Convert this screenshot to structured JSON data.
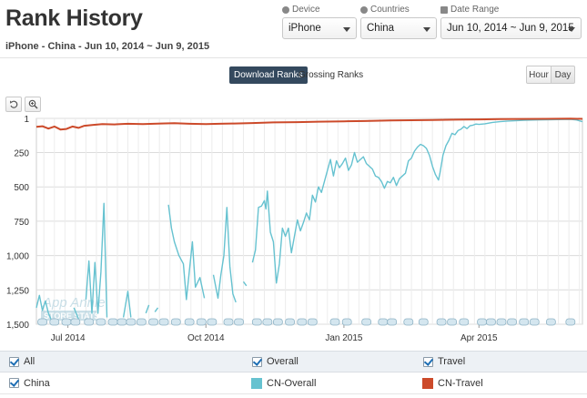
{
  "header": {
    "title": "Rank History",
    "subtitle": "iPhone - China - Jun 10, 2014 ~ Jun 9, 2015"
  },
  "filters": {
    "device": {
      "label": "Device",
      "value": "iPhone"
    },
    "countries": {
      "label": "Countries",
      "value": "China"
    },
    "date_range": {
      "label": "Date Range",
      "value": "Jun 10, 2014 ~ Jun 9, 2015"
    }
  },
  "rank_tabs": {
    "active": "Download Ranks",
    "inactive": "Grossing Ranks"
  },
  "granularity": {
    "hour": "Hour",
    "day": "Day"
  },
  "watermark": {
    "line1": "App Annie",
    "line2": "STORE STATS"
  },
  "legend": {
    "all": "All",
    "overall": "Overall",
    "travel": "Travel",
    "country": "China",
    "series_overall": "CN-Overall",
    "series_travel": "CN-Travel"
  },
  "colors": {
    "overall": "#66c2d0",
    "travel": "#cc4a2a",
    "grid": "#dcdcdc",
    "accent": "#34495e"
  },
  "icons": {
    "reset": "undo-icon",
    "zoom": "zoom-icon"
  },
  "chart_data": {
    "type": "line",
    "ylabel": "",
    "y_reversed": true,
    "ylim": [
      1,
      1500
    ],
    "yticks": [
      1,
      250,
      500,
      750,
      1000,
      1250,
      1500
    ],
    "ytick_labels": [
      "1",
      "250",
      "500",
      "750",
      "1,000",
      "1,250",
      "1,500"
    ],
    "xlim": [
      "2014-06-10",
      "2015-06-09"
    ],
    "xticks": [
      "2014-07-01",
      "2014-10-01",
      "2015-01-01",
      "2015-04-01"
    ],
    "xtick_labels": [
      "Jul 2014",
      "Oct 2014",
      "Jan 2015",
      "Apr 2015"
    ],
    "series": [
      {
        "name": "CN-Overall",
        "color": "#66c2d0",
        "segments": [
          [
            [
              "2014-06-10",
              1380
            ],
            [
              "2014-06-12",
              1290
            ],
            [
              "2014-06-14",
              1400
            ],
            [
              "2014-06-16",
              1330
            ],
            [
              "2014-06-18",
              1420
            ],
            [
              "2014-06-20",
              1470
            ]
          ],
          [
            [
              "2014-07-05",
              1380
            ],
            [
              "2014-07-08",
              1460
            ]
          ],
          [
            [
              "2014-07-13",
              1320
            ],
            [
              "2014-07-15",
              1040
            ],
            [
              "2014-07-17",
              1420
            ],
            [
              "2014-07-19",
              1050
            ],
            [
              "2014-07-21",
              1420
            ],
            [
              "2014-07-23",
              1120
            ],
            [
              "2014-07-25",
              620
            ],
            [
              "2014-07-27",
              1450
            ]
          ],
          [
            [
              "2014-08-07",
              1450
            ],
            [
              "2014-08-10",
              1260
            ],
            [
              "2014-08-12",
              1450
            ]
          ],
          [
            [
              "2014-08-22",
              1420
            ],
            [
              "2014-08-24",
              1360
            ]
          ],
          [
            [
              "2014-08-28",
              1410
            ],
            [
              "2014-08-30",
              1380
            ]
          ],
          [
            [
              "2014-09-06",
              630
            ],
            [
              "2014-09-08",
              800
            ],
            [
              "2014-09-10",
              900
            ],
            [
              "2014-09-13",
              1000
            ],
            [
              "2014-09-16",
              1060
            ],
            [
              "2014-09-18",
              1320
            ],
            [
              "2014-09-22",
              900
            ],
            [
              "2014-09-24",
              1230
            ],
            [
              "2014-09-27",
              1160
            ],
            [
              "2014-09-30",
              1310
            ]
          ],
          [
            [
              "2014-10-06",
              1140
            ],
            [
              "2014-10-09",
              1310
            ],
            [
              "2014-10-11",
              1140
            ],
            [
              "2014-10-13",
              1000
            ],
            [
              "2014-10-15",
              650
            ],
            [
              "2014-10-17",
              1080
            ],
            [
              "2014-10-19",
              1280
            ],
            [
              "2014-10-21",
              1340
            ]
          ],
          [
            [
              "2014-10-26",
              1190
            ],
            [
              "2014-10-28",
              1220
            ]
          ],
          [
            [
              "2014-11-01",
              1050
            ],
            [
              "2014-11-03",
              960
            ],
            [
              "2014-11-05",
              650
            ],
            [
              "2014-11-07",
              640
            ],
            [
              "2014-11-09",
              600
            ],
            [
              "2014-11-10",
              660
            ],
            [
              "2014-11-11",
              530
            ],
            [
              "2014-11-13",
              830
            ],
            [
              "2014-11-15",
              900
            ],
            [
              "2014-11-17",
              1200
            ],
            [
              "2014-11-19",
              1060
            ],
            [
              "2014-11-21",
              800
            ],
            [
              "2014-11-23",
              860
            ],
            [
              "2014-11-25",
              800
            ],
            [
              "2014-11-27",
              980
            ],
            [
              "2014-11-29",
              860
            ],
            [
              "2014-12-01",
              740
            ],
            [
              "2014-12-03",
              820
            ],
            [
              "2014-12-05",
              760
            ],
            [
              "2014-12-07",
              690
            ],
            [
              "2014-12-09",
              740
            ],
            [
              "2014-12-11",
              560
            ],
            [
              "2014-12-13",
              610
            ],
            [
              "2014-12-15",
              500
            ],
            [
              "2014-12-17",
              540
            ],
            [
              "2014-12-19",
              460
            ],
            [
              "2014-12-21",
              380
            ],
            [
              "2014-12-23",
              300
            ],
            [
              "2014-12-25",
              420
            ],
            [
              "2014-12-27",
              310
            ],
            [
              "2014-12-29",
              360
            ],
            [
              "2014-12-31",
              330
            ],
            [
              "2015-01-02",
              290
            ],
            [
              "2015-01-04",
              380
            ],
            [
              "2015-01-06",
              340
            ],
            [
              "2015-01-08",
              250
            ],
            [
              "2015-01-10",
              320
            ],
            [
              "2015-01-12",
              300
            ],
            [
              "2015-01-14",
              280
            ],
            [
              "2015-01-16",
              330
            ],
            [
              "2015-01-18",
              350
            ],
            [
              "2015-01-20",
              370
            ],
            [
              "2015-01-22",
              420
            ],
            [
              "2015-01-24",
              430
            ],
            [
              "2015-01-26",
              460
            ],
            [
              "2015-01-28",
              510
            ],
            [
              "2015-01-30",
              460
            ],
            [
              "2015-02-01",
              470
            ],
            [
              "2015-02-03",
              430
            ],
            [
              "2015-02-05",
              490
            ],
            [
              "2015-02-07",
              440
            ],
            [
              "2015-02-09",
              420
            ],
            [
              "2015-02-11",
              400
            ],
            [
              "2015-02-13",
              310
            ],
            [
              "2015-02-15",
              290
            ],
            [
              "2015-02-17",
              240
            ],
            [
              "2015-02-19",
              210
            ],
            [
              "2015-02-21",
              190
            ],
            [
              "2015-02-23",
              200
            ],
            [
              "2015-02-25",
              220
            ],
            [
              "2015-02-27",
              270
            ],
            [
              "2015-03-01",
              350
            ],
            [
              "2015-03-03",
              410
            ],
            [
              "2015-03-05",
              450
            ],
            [
              "2015-03-06",
              400
            ],
            [
              "2015-03-08",
              270
            ],
            [
              "2015-03-10",
              200
            ],
            [
              "2015-03-12",
              160
            ],
            [
              "2015-03-14",
              110
            ],
            [
              "2015-03-16",
              120
            ],
            [
              "2015-03-18",
              90
            ],
            [
              "2015-03-20",
              80
            ],
            [
              "2015-03-22",
              60
            ],
            [
              "2015-03-24",
              75
            ],
            [
              "2015-03-26",
              55
            ],
            [
              "2015-03-28",
              50
            ],
            [
              "2015-03-30",
              42
            ],
            [
              "2015-04-01",
              45
            ],
            [
              "2015-04-05",
              40
            ],
            [
              "2015-04-10",
              30
            ],
            [
              "2015-04-15",
              25
            ],
            [
              "2015-04-20",
              20
            ],
            [
              "2015-04-25",
              18
            ],
            [
              "2015-05-01",
              15
            ],
            [
              "2015-05-10",
              12
            ],
            [
              "2015-05-20",
              10
            ],
            [
              "2015-06-01",
              8
            ],
            [
              "2015-06-05",
              12
            ],
            [
              "2015-06-09",
              25
            ]
          ]
        ]
      },
      {
        "name": "CN-Travel",
        "color": "#cc4a2a",
        "segments": [
          [
            [
              "2014-06-10",
              62
            ],
            [
              "2014-06-14",
              58
            ],
            [
              "2014-06-18",
              75
            ],
            [
              "2014-06-22",
              60
            ],
            [
              "2014-06-26",
              82
            ],
            [
              "2014-06-30",
              78
            ],
            [
              "2014-07-04",
              60
            ],
            [
              "2014-07-08",
              70
            ],
            [
              "2014-07-12",
              55
            ],
            [
              "2014-07-18",
              48
            ],
            [
              "2014-07-24",
              42
            ],
            [
              "2014-08-01",
              45
            ],
            [
              "2014-08-10",
              40
            ],
            [
              "2014-08-20",
              42
            ],
            [
              "2014-09-01",
              38
            ],
            [
              "2014-09-10",
              36
            ],
            [
              "2014-09-20",
              40
            ],
            [
              "2014-10-01",
              42
            ],
            [
              "2014-10-10",
              40
            ],
            [
              "2014-10-20",
              38
            ],
            [
              "2014-11-01",
              35
            ],
            [
              "2014-11-15",
              30
            ],
            [
              "2014-12-01",
              28
            ],
            [
              "2014-12-15",
              25
            ],
            [
              "2015-01-01",
              22
            ],
            [
              "2015-01-15",
              20
            ],
            [
              "2015-02-01",
              16
            ],
            [
              "2015-02-15",
              14
            ],
            [
              "2015-03-01",
              12
            ],
            [
              "2015-03-15",
              10
            ],
            [
              "2015-04-01",
              8
            ],
            [
              "2015-04-15",
              6
            ],
            [
              "2015-05-01",
              5
            ],
            [
              "2015-05-15",
              4
            ],
            [
              "2015-06-01",
              3
            ],
            [
              "2015-06-09",
              4
            ]
          ]
        ]
      }
    ],
    "annotation_flags": [
      "2014-06-14",
      "2014-06-22",
      "2014-06-30",
      "2014-07-06",
      "2014-07-15",
      "2014-07-23",
      "2014-07-31",
      "2014-08-06",
      "2014-08-12",
      "2014-08-19",
      "2014-08-27",
      "2014-09-03",
      "2014-09-11",
      "2014-09-20",
      "2014-09-28",
      "2014-10-05",
      "2014-10-16",
      "2014-10-23",
      "2014-11-04",
      "2014-11-11",
      "2014-11-18",
      "2014-11-26",
      "2014-12-04",
      "2014-12-11",
      "2014-12-26",
      "2015-01-03",
      "2015-01-16",
      "2015-01-27",
      "2015-02-02",
      "2015-02-13",
      "2015-02-23",
      "2015-03-07",
      "2015-03-14",
      "2015-03-22",
      "2015-04-03",
      "2015-04-09",
      "2015-04-16",
      "2015-04-23",
      "2015-05-01",
      "2015-05-08",
      "2015-05-19",
      "2015-06-01"
    ]
  }
}
